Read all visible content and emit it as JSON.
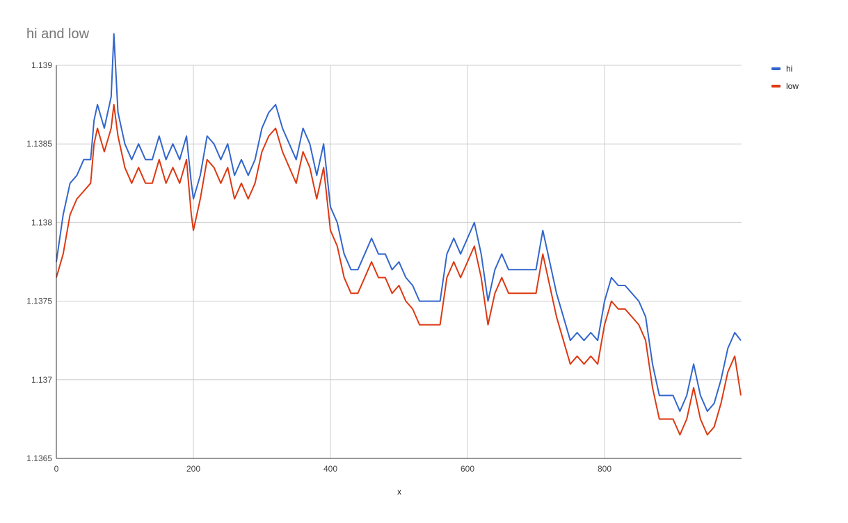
{
  "chart_data": {
    "type": "line",
    "title": "hi and low",
    "xlabel": "x",
    "ylabel": "",
    "xlim": [
      0,
      1000
    ],
    "ylim": [
      1.1365,
      1.139
    ],
    "x_ticks": [
      0,
      200,
      400,
      600,
      800
    ],
    "x_tick_labels": [
      "0",
      "200",
      "400",
      "600",
      "800"
    ],
    "y_ticks": [
      1.1365,
      1.137,
      1.1375,
      1.138,
      1.1385,
      1.139
    ],
    "y_tick_labels": [
      "1.1365",
      "1.137",
      "1.1375",
      "1.138",
      "1.1385",
      "1.139"
    ],
    "grid": true,
    "legend_position": "right",
    "x": [
      0,
      10,
      20,
      30,
      40,
      50,
      55,
      60,
      70,
      80,
      84,
      90,
      100,
      110,
      120,
      130,
      140,
      150,
      160,
      170,
      180,
      190,
      197,
      200,
      210,
      220,
      230,
      240,
      250,
      260,
      270,
      280,
      290,
      300,
      310,
      320,
      330,
      340,
      350,
      360,
      370,
      380,
      390,
      400,
      410,
      420,
      430,
      440,
      450,
      460,
      470,
      480,
      490,
      500,
      510,
      520,
      530,
      540,
      550,
      560,
      570,
      580,
      590,
      600,
      610,
      620,
      630,
      640,
      650,
      660,
      670,
      680,
      690,
      700,
      710,
      720,
      730,
      740,
      750,
      760,
      770,
      780,
      790,
      800,
      810,
      820,
      830,
      840,
      850,
      860,
      870,
      880,
      890,
      900,
      910,
      920,
      930,
      940,
      950,
      960,
      970,
      980,
      990,
      999
    ],
    "series": [
      {
        "name": "hi",
        "color": "#3366cc",
        "values": [
          1.13775,
          1.13805,
          1.13825,
          1.1383,
          1.1384,
          1.1384,
          1.13865,
          1.13875,
          1.1386,
          1.1388,
          1.1392,
          1.1387,
          1.1385,
          1.1384,
          1.1385,
          1.1384,
          1.1384,
          1.13855,
          1.1384,
          1.1385,
          1.1384,
          1.13855,
          1.13825,
          1.13815,
          1.1383,
          1.13855,
          1.1385,
          1.1384,
          1.1385,
          1.1383,
          1.1384,
          1.1383,
          1.1384,
          1.1386,
          1.1387,
          1.13875,
          1.1386,
          1.1385,
          1.1384,
          1.1386,
          1.1385,
          1.1383,
          1.1385,
          1.1381,
          1.138,
          1.1378,
          1.1377,
          1.1377,
          1.1378,
          1.1379,
          1.1378,
          1.1378,
          1.1377,
          1.13775,
          1.13765,
          1.1376,
          1.1375,
          1.1375,
          1.1375,
          1.1375,
          1.1378,
          1.1379,
          1.1378,
          1.1379,
          1.138,
          1.1378,
          1.1375,
          1.1377,
          1.1378,
          1.1377,
          1.1377,
          1.1377,
          1.1377,
          1.1377,
          1.13795,
          1.13775,
          1.13755,
          1.1374,
          1.13725,
          1.1373,
          1.13725,
          1.1373,
          1.13725,
          1.1375,
          1.13765,
          1.1376,
          1.1376,
          1.13755,
          1.1375,
          1.1374,
          1.1371,
          1.1369,
          1.1369,
          1.1369,
          1.1368,
          1.1369,
          1.1371,
          1.1369,
          1.1368,
          1.13685,
          1.137,
          1.1372,
          1.1373,
          1.13725
        ]
      },
      {
        "name": "low",
        "color": "#dc3912",
        "values": [
          1.13765,
          1.1378,
          1.13805,
          1.13815,
          1.1382,
          1.13825,
          1.1385,
          1.1386,
          1.13845,
          1.1386,
          1.13875,
          1.13855,
          1.13835,
          1.13825,
          1.13835,
          1.13825,
          1.13825,
          1.1384,
          1.13825,
          1.13835,
          1.13825,
          1.1384,
          1.13805,
          1.13795,
          1.13815,
          1.1384,
          1.13835,
          1.13825,
          1.13835,
          1.13815,
          1.13825,
          1.13815,
          1.13825,
          1.13845,
          1.13855,
          1.1386,
          1.13845,
          1.13835,
          1.13825,
          1.13845,
          1.13835,
          1.13815,
          1.13835,
          1.13795,
          1.13785,
          1.13765,
          1.13755,
          1.13755,
          1.13765,
          1.13775,
          1.13765,
          1.13765,
          1.13755,
          1.1376,
          1.1375,
          1.13745,
          1.13735,
          1.13735,
          1.13735,
          1.13735,
          1.13765,
          1.13775,
          1.13765,
          1.13775,
          1.13785,
          1.13765,
          1.13735,
          1.13755,
          1.13765,
          1.13755,
          1.13755,
          1.13755,
          1.13755,
          1.13755,
          1.1378,
          1.1376,
          1.1374,
          1.13725,
          1.1371,
          1.13715,
          1.1371,
          1.13715,
          1.1371,
          1.13735,
          1.1375,
          1.13745,
          1.13745,
          1.1374,
          1.13735,
          1.13725,
          1.13695,
          1.13675,
          1.13675,
          1.13675,
          1.13665,
          1.13675,
          1.13695,
          1.13675,
          1.13665,
          1.1367,
          1.13685,
          1.13705,
          1.13715,
          1.1369
        ]
      }
    ]
  }
}
